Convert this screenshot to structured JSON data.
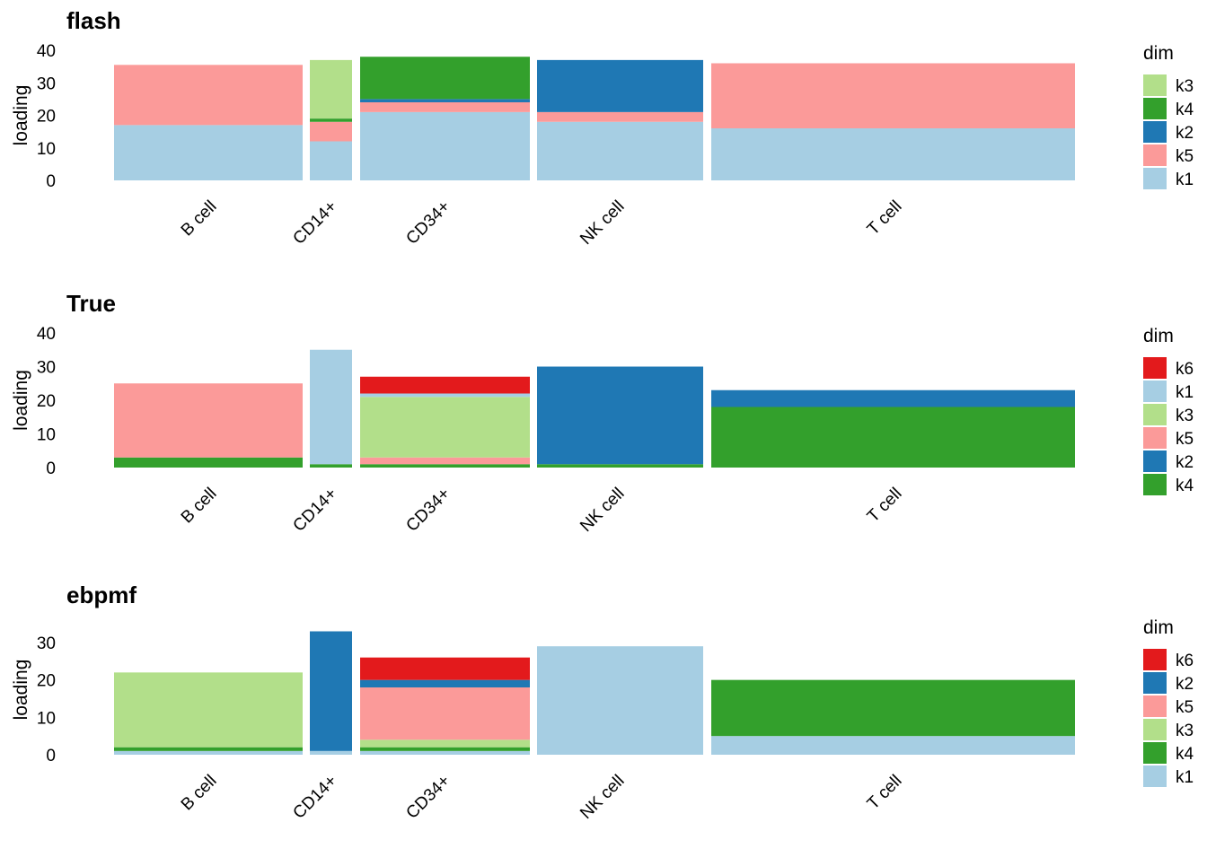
{
  "figure": {
    "description": "Structure plots of topic loadings per cell, grouped by cell type"
  },
  "palette": {
    "k1": "#a6cee3",
    "k2": "#1f78b4",
    "k3": "#b2df8a",
    "k4": "#33a02c",
    "k5": "#fb9a99",
    "k6": "#e31a1c"
  },
  "chart_data": [
    {
      "type": "bar",
      "stacked": true,
      "title": "flash",
      "xlabel": "",
      "ylabel": "loading",
      "ylim": [
        0,
        40
      ],
      "yticks": [
        "0",
        "10",
        "20",
        "30",
        "40"
      ],
      "categories": [
        "B cell",
        "CD14+",
        "CD34+",
        "NK cell",
        "T cell"
      ],
      "legend": {
        "title": "dim",
        "position": "right",
        "entries": [
          "k3",
          "k4",
          "k2",
          "k5",
          "k1"
        ]
      },
      "series_stack_order": [
        "k1",
        "k5",
        "k2",
        "k4",
        "k3"
      ],
      "groups": [
        {
          "name": "B cell",
          "k1": 17,
          "k5": 18.5,
          "k2": 0,
          "k4": 0,
          "k3": 0
        },
        {
          "name": "CD14+",
          "k1": 12,
          "k5": 6,
          "k2": 0,
          "k4": 1,
          "k3": 18
        },
        {
          "name": "CD34+",
          "k1": 21,
          "k5": 3,
          "k2": 1,
          "k4": 13,
          "k3": 0
        },
        {
          "name": "NK cell",
          "k1": 18,
          "k5": 3,
          "k2": 16,
          "k4": 0,
          "k3": 0
        },
        {
          "name": "T cell",
          "k1": 16,
          "k5": 20,
          "k2": 0,
          "k4": 0,
          "k3": 0
        }
      ]
    },
    {
      "type": "bar",
      "stacked": true,
      "title": "True",
      "xlabel": "",
      "ylabel": "loading",
      "ylim": [
        0,
        40
      ],
      "yticks": [
        "0",
        "10",
        "20",
        "30",
        "40"
      ],
      "categories": [
        "B cell",
        "CD14+",
        "CD34+",
        "NK cell",
        "T cell"
      ],
      "legend": {
        "title": "dim",
        "position": "right",
        "entries": [
          "k6",
          "k1",
          "k3",
          "k5",
          "k2",
          "k4"
        ]
      },
      "series_stack_order": [
        "k4",
        "k2",
        "k5",
        "k3",
        "k1",
        "k6"
      ],
      "groups": [
        {
          "name": "B cell",
          "k4": 3,
          "k2": 0,
          "k5": 22,
          "k3": 0,
          "k1": 0,
          "k6": 0
        },
        {
          "name": "CD14+",
          "k4": 1,
          "k2": 0,
          "k5": 0,
          "k3": 0,
          "k1": 34,
          "k6": 0
        },
        {
          "name": "CD34+",
          "k4": 1,
          "k2": 0,
          "k5": 2,
          "k3": 18,
          "k1": 1,
          "k6": 5
        },
        {
          "name": "NK cell",
          "k4": 1,
          "k2": 29,
          "k5": 0,
          "k3": 0,
          "k1": 0,
          "k6": 0
        },
        {
          "name": "T cell",
          "k4": 18,
          "k2": 5,
          "k5": 0,
          "k3": 0,
          "k1": 0,
          "k6": 0
        }
      ]
    },
    {
      "type": "bar",
      "stacked": true,
      "title": "ebpmf",
      "xlabel": "",
      "ylabel": "loading",
      "ylim": [
        0,
        35
      ],
      "yticks": [
        "0",
        "10",
        "20",
        "30"
      ],
      "categories": [
        "B cell",
        "CD14+",
        "CD34+",
        "NK cell",
        "T cell"
      ],
      "legend": {
        "title": "dim",
        "position": "right",
        "entries": [
          "k6",
          "k2",
          "k5",
          "k3",
          "k4",
          "k1"
        ]
      },
      "series_stack_order": [
        "k1",
        "k4",
        "k3",
        "k5",
        "k2",
        "k6"
      ],
      "groups": [
        {
          "name": "B cell",
          "k1": 1,
          "k4": 1,
          "k3": 20,
          "k5": 0,
          "k2": 0,
          "k6": 0
        },
        {
          "name": "CD14+",
          "k1": 1,
          "k4": 0,
          "k3": 0,
          "k5": 0,
          "k2": 32,
          "k6": 0
        },
        {
          "name": "CD34+",
          "k1": 1,
          "k4": 1,
          "k3": 2,
          "k5": 14,
          "k2": 2,
          "k6": 6
        },
        {
          "name": "NK cell",
          "k1": 29,
          "k4": 0,
          "k3": 0,
          "k5": 0,
          "k2": 0,
          "k6": 0
        },
        {
          "name": "T cell",
          "k1": 5,
          "k4": 15,
          "k3": 0,
          "k5": 0,
          "k2": 0,
          "k6": 0
        }
      ]
    }
  ]
}
